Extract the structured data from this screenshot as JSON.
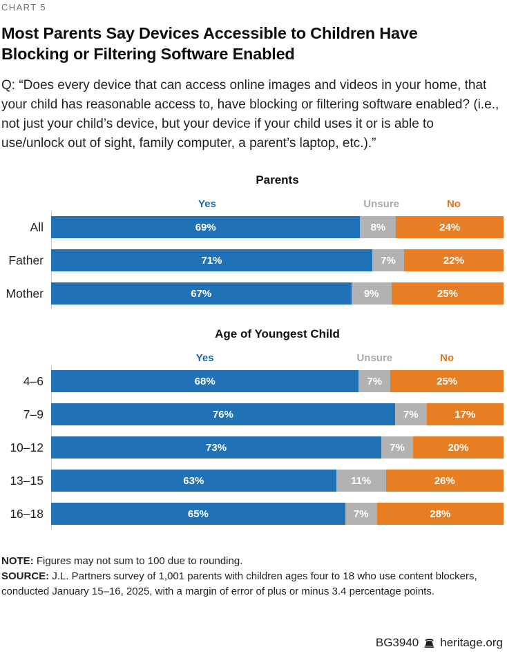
{
  "page": {
    "chart_label": "CHART 5",
    "title": "Most Parents Say Devices Accessible to Children Have Blocking or Filtering Software Enabled",
    "question": "Q: “Does every device that can access online images and videos in your home, that your child has reasonable access to, have blocking or filtering software enabled? (i.e., not just your child’s device, but your device if your child uses it or is able to use/unlock out of sight, family computer, a parent’s laptop, etc.).”",
    "note_label": "NOTE:",
    "note_text": " Figures may not sum to 100 due to rounding.",
    "source_label": "SOURCE:",
    "source_text": " J.L. Partners survey of 1,001 parents with children ages four to 18 who use content blockers, conducted January 15–16, 2025, with a margin of error of plus or minus 3.4 percentage points.",
    "footer": {
      "doc_id": "BG3940",
      "site": "heritage.org",
      "logo_icon": "liberty-bell-icon"
    }
  },
  "colors": {
    "yes": "#2071b5",
    "unsure": "#b2b2b2",
    "no": "#e87e24",
    "legend_yes_text": "#1a66b2",
    "legend_unsure_text": "#a7a9ac",
    "legend_no_text": "#e8711d",
    "axis_line": "#c9cacb",
    "value_text": "#ffffff"
  },
  "chart_data": [
    {
      "type": "bar",
      "stacked": true,
      "orientation": "horizontal",
      "title": "Parents",
      "unit": "%",
      "xlim": [
        0,
        100
      ],
      "grid": false,
      "legend_position": "above",
      "value_labels": "inside-white-bold",
      "legend": [
        "Yes",
        "Unsure",
        "No"
      ],
      "categories": [
        "All",
        "Father",
        "Mother"
      ],
      "series": [
        {
          "name": "Yes",
          "values": [
            69,
            71,
            67
          ]
        },
        {
          "name": "Unsure",
          "values": [
            8,
            7,
            9
          ]
        },
        {
          "name": "No",
          "values": [
            24,
            22,
            25
          ]
        }
      ]
    },
    {
      "type": "bar",
      "stacked": true,
      "orientation": "horizontal",
      "title": "Age of Youngest Child",
      "unit": "%",
      "xlim": [
        0,
        100
      ],
      "grid": false,
      "legend_position": "above",
      "value_labels": "inside-white-bold",
      "legend": [
        "Yes",
        "Unsure",
        "No"
      ],
      "categories": [
        "4–6",
        "7–9",
        "10–12",
        "13–15",
        "16–18"
      ],
      "series": [
        {
          "name": "Yes",
          "values": [
            68,
            76,
            73,
            63,
            65
          ]
        },
        {
          "name": "Unsure",
          "values": [
            7,
            7,
            7,
            11,
            7
          ]
        },
        {
          "name": "No",
          "values": [
            25,
            17,
            20,
            26,
            28
          ]
        }
      ]
    }
  ]
}
